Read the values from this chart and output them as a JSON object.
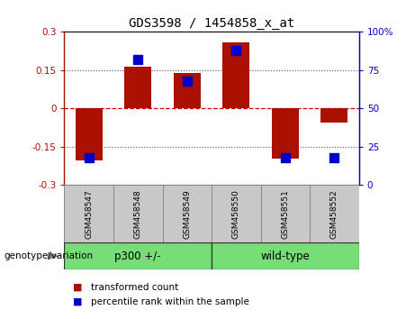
{
  "title": "GDS3598 / 1454858_x_at",
  "samples": [
    "GSM458547",
    "GSM458548",
    "GSM458549",
    "GSM458550",
    "GSM458551",
    "GSM458552"
  ],
  "transformed_count": [
    -0.205,
    0.162,
    0.14,
    0.26,
    -0.195,
    -0.055
  ],
  "percentile_rank": [
    18,
    82,
    68,
    88,
    18,
    18
  ],
  "ylim_left": [
    -0.3,
    0.3
  ],
  "ylim_right": [
    0,
    100
  ],
  "yticks_left": [
    -0.3,
    -0.15,
    0,
    0.15,
    0.3
  ],
  "yticks_right": [
    0,
    25,
    50,
    75,
    100
  ],
  "ytick_labels_left": [
    "-0.3",
    "-0.15",
    "0",
    "0.15",
    "0.3"
  ],
  "ytick_labels_right": [
    "0",
    "25",
    "50",
    "75",
    "100%"
  ],
  "hlines": [
    -0.15,
    0.0,
    0.15
  ],
  "groups": [
    {
      "label": "p300 +/-",
      "start": 0,
      "end": 2
    },
    {
      "label": "wild-type",
      "start": 3,
      "end": 5
    }
  ],
  "bar_color": "#AA1100",
  "dot_color": "#0000CC",
  "bar_width": 0.55,
  "dot_size": 55,
  "legend_items": [
    {
      "label": "transformed count",
      "color": "#AA1100"
    },
    {
      "label": "percentile rank within the sample",
      "color": "#0000CC"
    }
  ],
  "zero_line_color": "#CC0000",
  "dotted_line_color": "#555555",
  "group_label": "genotype/variation",
  "background_label": "#C8C8C8",
  "background_group": "#77DD77"
}
